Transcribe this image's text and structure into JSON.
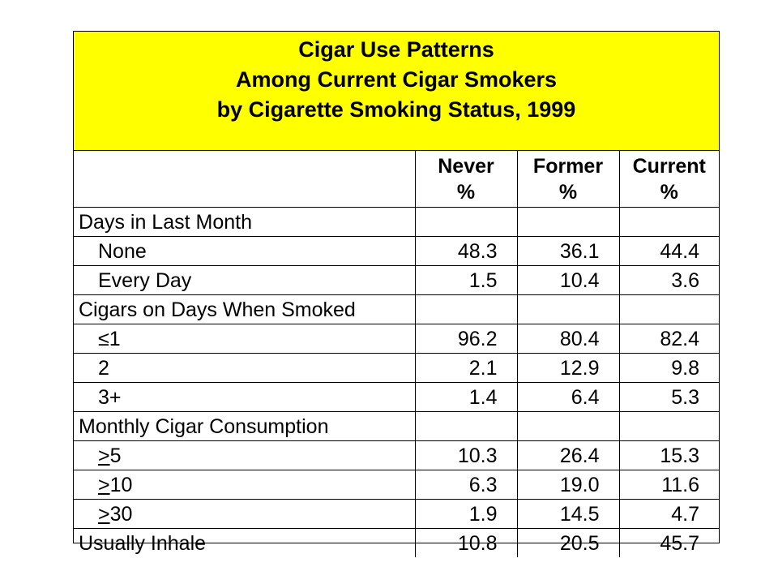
{
  "title": {
    "line1": "Cigar Use Patterns",
    "line2": "Among Current Cigar Smokers",
    "line3": "by Cigarette Smoking Status, 1999"
  },
  "columns": [
    {
      "name": "Never",
      "unit": "%"
    },
    {
      "name": "Former",
      "unit": "%"
    },
    {
      "name": "Current",
      "unit": "%"
    }
  ],
  "rows": [
    {
      "label": "Days in Last Month",
      "section": true,
      "values": [
        "",
        "",
        ""
      ]
    },
    {
      "label": "None",
      "values": [
        "48.3",
        "36.1",
        "44.4"
      ]
    },
    {
      "label": "Every Day",
      "values": [
        "1.5",
        "10.4",
        "3.6"
      ]
    },
    {
      "label": "Cigars on Days When Smoked",
      "section": true,
      "values": [
        "",
        "",
        ""
      ]
    },
    {
      "label": "≤1",
      "values": [
        "96.2",
        "80.4",
        "82.4"
      ]
    },
    {
      "label": "2",
      "values": [
        "2.1",
        "12.9",
        "9.8"
      ]
    },
    {
      "label": "3+",
      "values": [
        "1.4",
        "6.4",
        "5.3"
      ]
    },
    {
      "label": "Monthly Cigar Consumption",
      "section": true,
      "values": [
        "",
        "",
        ""
      ]
    },
    {
      "label": ">5",
      "values": [
        "10.3",
        "26.4",
        "15.3"
      ]
    },
    {
      "label": ">10",
      "values": [
        "6.3",
        "19.0",
        "11.6"
      ]
    },
    {
      "label": ">30",
      "values": [
        "1.9",
        "14.5",
        "4.7"
      ]
    },
    {
      "label": "Usually Inhale",
      "section": true,
      "values": [
        "10.8",
        "20.5",
        "45.7"
      ]
    }
  ]
}
